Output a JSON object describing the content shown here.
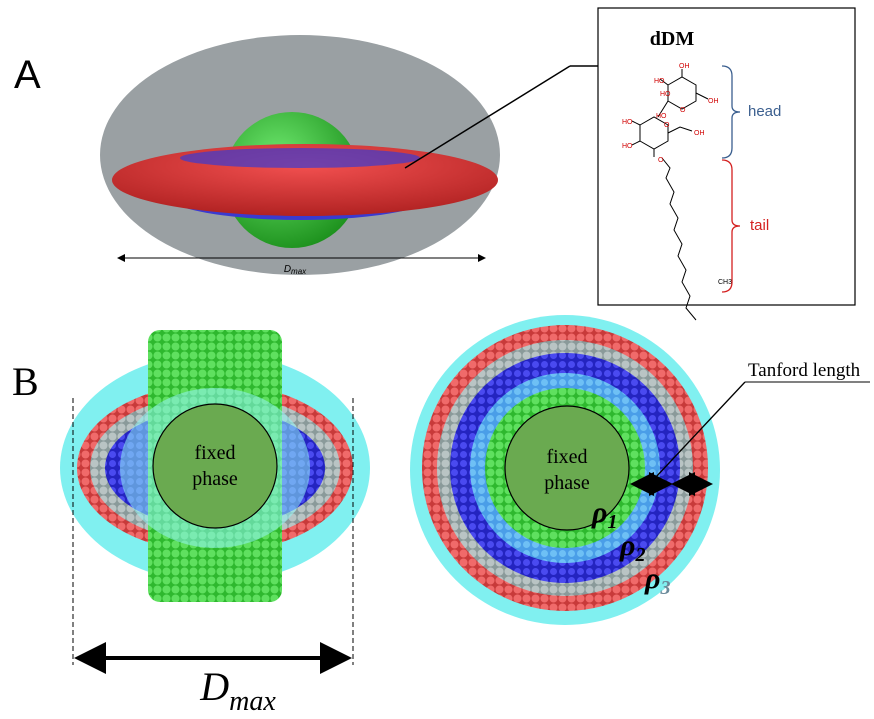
{
  "panel_a": {
    "label": "A",
    "dmax": {
      "symbol": "D",
      "subscript": "max"
    },
    "molecule": {
      "name": "dDM",
      "head": "head",
      "tail": "tail",
      "atoms": [
        "HO",
        "OH",
        "HO",
        "O",
        "HO",
        "OH",
        "HO",
        "O",
        "HO",
        "OH",
        "O",
        "CH3"
      ]
    }
  },
  "panel_b": {
    "label": "B",
    "left": {
      "core": [
        "fixed",
        "phase"
      ],
      "dmax": {
        "symbol": "D",
        "subscript": "max"
      }
    },
    "right": {
      "core": [
        "fixed",
        "phase"
      ],
      "tanford": "Tanford length",
      "rho": [
        {
          "symbol": "ρ",
          "subscript": "1"
        },
        {
          "symbol": "ρ",
          "subscript": "2"
        },
        {
          "symbol": "ρ",
          "subscript": "3"
        }
      ]
    }
  }
}
